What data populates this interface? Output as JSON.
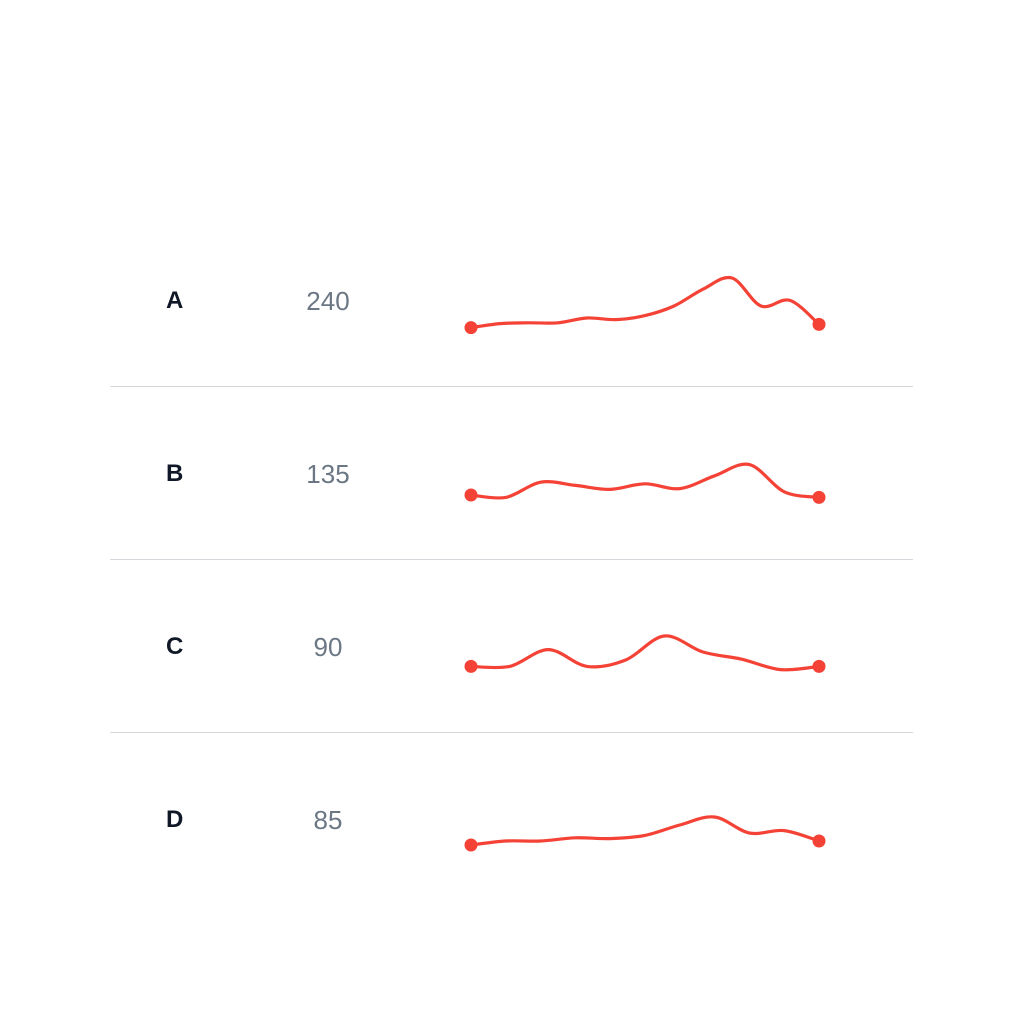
{
  "colors": {
    "line": "#f44336",
    "label": "#101828",
    "value": "#6b7785",
    "divider": "#d5d9dd"
  },
  "chart_data": {
    "type": "line",
    "title": "",
    "ylim": [
      0,
      100
    ],
    "rows": [
      {
        "label": "A",
        "value": "240",
        "series": [
          23,
          28,
          29,
          29,
          35,
          33,
          38,
          50,
          71,
          85,
          50,
          57,
          27
        ]
      },
      {
        "label": "B",
        "value": "135",
        "series": [
          30,
          27,
          46,
          42,
          37,
          44,
          38,
          54,
          68,
          34,
          27
        ]
      },
      {
        "label": "C",
        "value": "90",
        "series": [
          32,
          32,
          53,
          32,
          40,
          70,
          50,
          41,
          28,
          32
        ]
      },
      {
        "label": "D",
        "value": "85",
        "series": [
          25,
          30,
          30,
          34,
          33,
          37,
          50,
          60,
          40,
          43,
          30
        ]
      }
    ]
  }
}
